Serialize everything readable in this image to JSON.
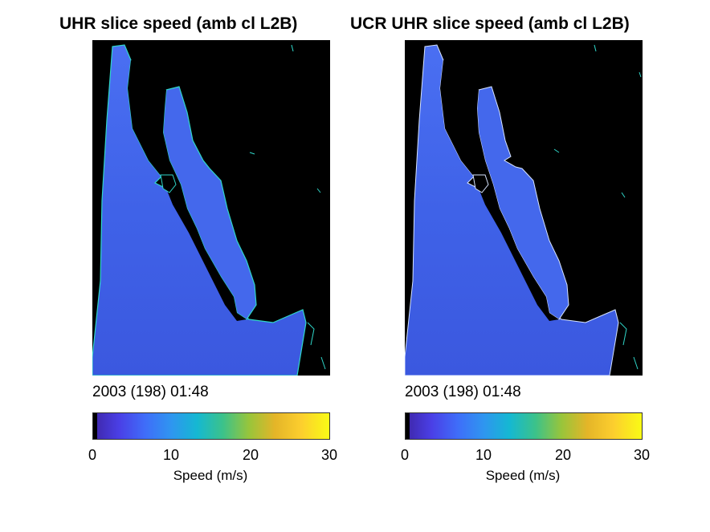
{
  "panels": [
    {
      "title": "UHR slice speed (amb cl L2B)",
      "timestamp": "2003 (198) 01:48",
      "colorbar": {
        "ticks": [
          "0",
          "10",
          "20",
          "30"
        ],
        "label": "Speed (m/s)",
        "range": [
          0,
          30
        ]
      }
    },
    {
      "title": "UCR UHR slice speed (amb cl L2B)",
      "timestamp": "2003 (198) 01:48",
      "colorbar": {
        "ticks": [
          "0",
          "10",
          "20",
          "30"
        ],
        "label": "Speed (m/s)",
        "range": [
          0,
          30
        ]
      }
    }
  ],
  "colors": {
    "background": "#000000",
    "ocean_low": "#3a5be0",
    "ocean_mid": "#4a70f0",
    "coast_edge": "#2fd6c8",
    "colormap": [
      "#3e26a8",
      "#4a3fe6",
      "#3f6df9",
      "#2f95f0",
      "#15b8d2",
      "#3cc28a",
      "#98c53b",
      "#e4b528",
      "#fcce2e",
      "#f9fb15"
    ]
  }
}
